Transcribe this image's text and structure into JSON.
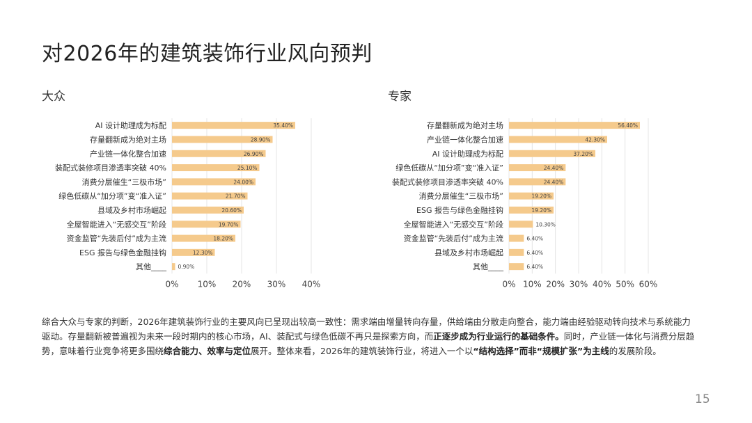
{
  "page": {
    "title": "对2026年的建筑装饰行业风向预判",
    "page_number": "15"
  },
  "chart_data": [
    {
      "type": "bar",
      "orientation": "horizontal",
      "title": "大众",
      "categories": [
        "AI 设计助理成为标配",
        "存量翻新成为绝对主场",
        "产业链一体化整合加速",
        "装配式装修项目渗透率突破 40%",
        "消费分层催生“三极市场”",
        "绿色低碳从“加分项”变“准入证”",
        "县域及乡村市场崛起",
        "全屋智能进入“无感交互”阶段",
        "资金监管“先装后付”成为主流",
        "ESG 报告与绿色金融挂钩",
        "其他____"
      ],
      "values": [
        35.4,
        28.9,
        26.9,
        25.1,
        24.0,
        21.7,
        20.6,
        19.7,
        18.2,
        12.3,
        0.9
      ],
      "value_labels": [
        "35.40%",
        "28.90%",
        "26.90%",
        "25.10%",
        "24.00%",
        "21.70%",
        "20.60%",
        "19.70%",
        "18.20%",
        "12.30%",
        "0.90%"
      ],
      "xlim": [
        0,
        40
      ],
      "xticks": [
        "0%",
        "10%",
        "20%",
        "30%",
        "40%"
      ],
      "grid": true,
      "bar_color": "#F5CA8C"
    },
    {
      "type": "bar",
      "orientation": "horizontal",
      "title": "专家",
      "categories": [
        "存量翻新成为绝对主场",
        "产业链一体化整合加速",
        "AI 设计助理成为标配",
        "绿色低碳从“加分项”变“准入证”",
        "装配式装修项目渗透率突破 40%",
        "消费分层催生“三极市场”",
        "ESG 报告与绿色金融挂钩",
        "全屋智能进入“无感交互”阶段",
        "资金监管“先装后付”成为主流",
        "县域及乡村市场崛起",
        "其他____"
      ],
      "values": [
        56.4,
        42.3,
        37.2,
        24.4,
        24.4,
        19.2,
        19.2,
        10.3,
        6.4,
        6.4,
        6.4
      ],
      "value_labels": [
        "56.40%",
        "42.30%",
        "37.20%",
        "24.40%",
        "24.40%",
        "19.20%",
        "19.20%",
        "10.30%",
        "6.40%",
        "6.40%",
        "6.40%"
      ],
      "xlim": [
        0,
        60
      ],
      "xticks": [
        "0%",
        "10%",
        "20%",
        "30%",
        "40%",
        "50%",
        "60%"
      ],
      "grid": true,
      "bar_color": "#F5CA8C"
    }
  ],
  "summary": {
    "p1": "综合大众与专家的判断，2026年建筑装饰行业的主要风向已呈现出较高一致性：需求端由增量转向存量，供给端由分散走向整合，能力端由经验驱动转向技术与系统能力驱动。存量翻新被普遍视为未来一段时期内的核心市场，AI、装配式与绿色低碳不再只是探索方向，而",
    "b1": "正逐步成为行业运行的基础条件。",
    "p2": "同时，产业链一体化与消费分层趋势，意味着行业竞争将更多围绕",
    "b2": "综合能力、效率与定位",
    "p3": "展开。整体来看，2026年的建筑装饰行业，将进入一个以",
    "b3": "“结构选择”而非“规模扩张”为主线",
    "p4": "的发展阶段。"
  }
}
